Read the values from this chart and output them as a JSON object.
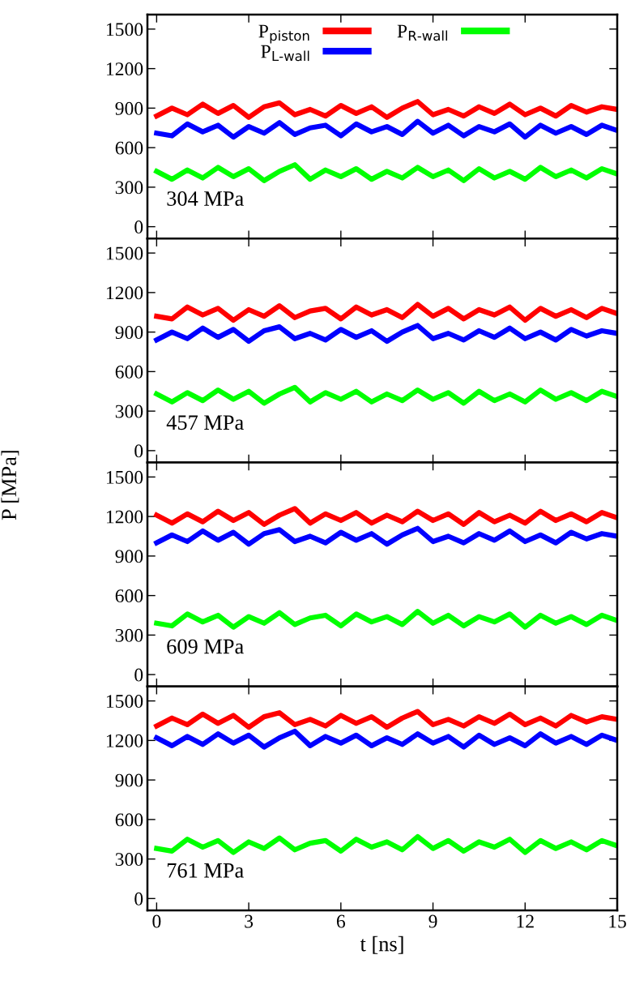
{
  "chart_data": [
    {
      "type": "line",
      "xlim": [
        -0.3,
        15
      ],
      "xticks": [
        0,
        3,
        6,
        9,
        12,
        15
      ],
      "ylim": [
        -90,
        1610
      ],
      "yticks": [
        0,
        300,
        600,
        900,
        1200,
        1500
      ],
      "tick_labels": "y",
      "legend": "top",
      "grid": false,
      "annotations": [
        "304 MPa"
      ],
      "x": [
        0,
        0.5,
        1,
        1.5,
        2,
        2.5,
        3,
        3.5,
        4,
        4.5,
        5,
        5.5,
        6,
        6.5,
        7,
        7.5,
        8,
        8.5,
        9,
        9.5,
        10,
        10.5,
        11,
        11.5,
        12,
        12.5,
        13,
        13.5,
        14,
        14.5,
        15
      ],
      "series": [
        {
          "name": "P$_{piston}$",
          "color": "#ff0000",
          "values": [
            840,
            900,
            850,
            930,
            860,
            920,
            830,
            910,
            940,
            850,
            890,
            840,
            920,
            860,
            910,
            830,
            900,
            950,
            850,
            890,
            840,
            910,
            860,
            930,
            850,
            900,
            840,
            920,
            870,
            910,
            890
          ]
        },
        {
          "name": "P$_{L-wall}$",
          "color": "#0000ff",
          "values": [
            710,
            690,
            780,
            720,
            770,
            680,
            760,
            710,
            790,
            700,
            750,
            770,
            690,
            780,
            720,
            760,
            700,
            800,
            710,
            770,
            690,
            760,
            720,
            780,
            680,
            770,
            710,
            760,
            700,
            770,
            730
          ]
        },
        {
          "name": "P$_{R-wall}$",
          "color": "#00ff00",
          "values": [
            420,
            360,
            430,
            370,
            450,
            380,
            440,
            350,
            420,
            470,
            360,
            430,
            380,
            440,
            360,
            420,
            370,
            450,
            380,
            430,
            350,
            440,
            370,
            420,
            360,
            450,
            380,
            430,
            370,
            440,
            400
          ]
        }
      ]
    },
    {
      "type": "line",
      "xlim": [
        -0.3,
        15
      ],
      "xticks": [
        0,
        3,
        6,
        9,
        12,
        15
      ],
      "ylim": [
        -90,
        1610
      ],
      "yticks": [
        0,
        300,
        600,
        900,
        1200,
        1500
      ],
      "tick_labels": "y",
      "grid": false,
      "annotations": [
        "457 MPa"
      ],
      "x": [
        0,
        0.5,
        1,
        1.5,
        2,
        2.5,
        3,
        3.5,
        4,
        4.5,
        5,
        5.5,
        6,
        6.5,
        7,
        7.5,
        8,
        8.5,
        9,
        9.5,
        10,
        10.5,
        11,
        11.5,
        12,
        12.5,
        13,
        13.5,
        14,
        14.5,
        15
      ],
      "series": [
        {
          "color": "#ff0000",
          "values": [
            1020,
            1000,
            1090,
            1030,
            1080,
            990,
            1070,
            1020,
            1100,
            1010,
            1060,
            1080,
            1000,
            1090,
            1030,
            1070,
            1010,
            1110,
            1020,
            1080,
            1000,
            1070,
            1030,
            1090,
            990,
            1080,
            1020,
            1070,
            1010,
            1080,
            1040
          ]
        },
        {
          "color": "#0000ff",
          "values": [
            840,
            900,
            850,
            930,
            860,
            920,
            830,
            910,
            940,
            850,
            890,
            840,
            920,
            860,
            910,
            830,
            900,
            950,
            850,
            890,
            840,
            910,
            860,
            930,
            850,
            900,
            840,
            920,
            870,
            910,
            890
          ]
        },
        {
          "color": "#00ff00",
          "values": [
            430,
            370,
            440,
            380,
            460,
            390,
            450,
            360,
            430,
            480,
            370,
            440,
            390,
            450,
            370,
            430,
            380,
            460,
            390,
            440,
            360,
            450,
            380,
            430,
            370,
            460,
            390,
            440,
            380,
            450,
            410
          ]
        }
      ]
    },
    {
      "type": "line",
      "xlim": [
        -0.3,
        15
      ],
      "xticks": [
        0,
        3,
        6,
        9,
        12,
        15
      ],
      "ylim": [
        -90,
        1610
      ],
      "yticks": [
        0,
        300,
        600,
        900,
        1200,
        1500
      ],
      "tick_labels": "y",
      "ylabel": "P [MPa]",
      "grid": false,
      "annotations": [
        "609 MPa"
      ],
      "x": [
        0,
        0.5,
        1,
        1.5,
        2,
        2.5,
        3,
        3.5,
        4,
        4.5,
        5,
        5.5,
        6,
        6.5,
        7,
        7.5,
        8,
        8.5,
        9,
        9.5,
        10,
        10.5,
        11,
        11.5,
        12,
        12.5,
        13,
        13.5,
        14,
        14.5,
        15
      ],
      "series": [
        {
          "color": "#ff0000",
          "values": [
            1210,
            1150,
            1220,
            1160,
            1240,
            1170,
            1230,
            1140,
            1210,
            1260,
            1150,
            1220,
            1170,
            1230,
            1150,
            1210,
            1160,
            1240,
            1170,
            1220,
            1140,
            1230,
            1160,
            1210,
            1150,
            1240,
            1170,
            1220,
            1160,
            1230,
            1190
          ]
        },
        {
          "color": "#0000ff",
          "values": [
            1000,
            1060,
            1010,
            1090,
            1020,
            1080,
            990,
            1070,
            1100,
            1010,
            1050,
            1000,
            1080,
            1020,
            1070,
            990,
            1060,
            1110,
            1010,
            1050,
            1000,
            1070,
            1020,
            1090,
            1010,
            1060,
            1000,
            1080,
            1030,
            1070,
            1050
          ]
        },
        {
          "color": "#00ff00",
          "values": [
            390,
            370,
            460,
            400,
            450,
            360,
            440,
            390,
            470,
            380,
            430,
            450,
            370,
            460,
            400,
            440,
            380,
            480,
            390,
            450,
            370,
            440,
            400,
            460,
            360,
            450,
            390,
            440,
            380,
            450,
            410
          ]
        }
      ]
    },
    {
      "type": "line",
      "xlabel": "t [ns]",
      "xlim": [
        -0.3,
        15
      ],
      "xticks": [
        0,
        3,
        6,
        9,
        12,
        15
      ],
      "ylim": [
        -90,
        1610
      ],
      "yticks": [
        0,
        300,
        600,
        900,
        1200,
        1500
      ],
      "grid": false,
      "annotations": [
        "761 MPa"
      ],
      "x": [
        0,
        0.5,
        1,
        1.5,
        2,
        2.5,
        3,
        3.5,
        4,
        4.5,
        5,
        5.5,
        6,
        6.5,
        7,
        7.5,
        8,
        8.5,
        9,
        9.5,
        10,
        10.5,
        11,
        11.5,
        12,
        12.5,
        13,
        13.5,
        14,
        14.5,
        15
      ],
      "series": [
        {
          "color": "#ff0000",
          "values": [
            1310,
            1370,
            1320,
            1400,
            1330,
            1390,
            1300,
            1380,
            1410,
            1320,
            1360,
            1310,
            1390,
            1330,
            1380,
            1300,
            1370,
            1420,
            1320,
            1360,
            1310,
            1380,
            1330,
            1400,
            1320,
            1370,
            1310,
            1390,
            1340,
            1380,
            1360
          ]
        },
        {
          "color": "#0000ff",
          "values": [
            1220,
            1160,
            1230,
            1170,
            1250,
            1180,
            1240,
            1150,
            1220,
            1270,
            1160,
            1230,
            1180,
            1240,
            1160,
            1220,
            1170,
            1250,
            1180,
            1230,
            1150,
            1240,
            1170,
            1220,
            1160,
            1250,
            1180,
            1230,
            1170,
            1240,
            1200
          ]
        },
        {
          "color": "#00ff00",
          "values": [
            380,
            360,
            450,
            390,
            440,
            350,
            430,
            380,
            460,
            370,
            420,
            440,
            360,
            450,
            390,
            430,
            370,
            470,
            380,
            440,
            360,
            430,
            390,
            450,
            350,
            440,
            380,
            430,
            370,
            440,
            400
          ]
        }
      ]
    }
  ]
}
